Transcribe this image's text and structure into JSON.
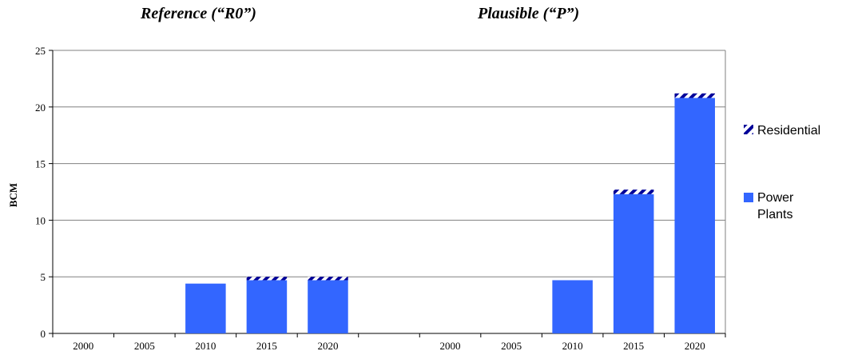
{
  "chart_data": {
    "type": "bar",
    "stacked": true,
    "panels": [
      {
        "title": "Reference (“R0”)",
        "categories": [
          "2000",
          "2005",
          "2010",
          "2015",
          "2020"
        ]
      },
      {
        "title": "Plausible (“P”)",
        "categories": [
          "2000",
          "2005",
          "2010",
          "2015",
          "2020"
        ]
      }
    ],
    "categories": [
      "2000",
      "2005",
      "2010",
      "2015",
      "2020",
      "2000",
      "2005",
      "2010",
      "2015",
      "2020"
    ],
    "series": [
      {
        "name": "Power Plants",
        "values": [
          0,
          0,
          4.4,
          4.7,
          4.7,
          0,
          0,
          4.7,
          12.3,
          20.8
        ],
        "color": "#3366ff"
      },
      {
        "name": "Residential",
        "values": [
          0,
          0,
          0,
          0.3,
          0.3,
          0,
          0,
          0,
          0.4,
          0.4
        ],
        "color": "#000099",
        "pattern": "diagonal-stripes"
      }
    ],
    "legend": {
      "labels": [
        "Residential",
        "Power Plants"
      ],
      "placement": "right"
    },
    "ylabel": "BCM",
    "xlabel": "",
    "ylim": [
      0,
      25
    ],
    "yticks": [
      0,
      5,
      10,
      15,
      20,
      25
    ],
    "grid": "horizontal"
  }
}
